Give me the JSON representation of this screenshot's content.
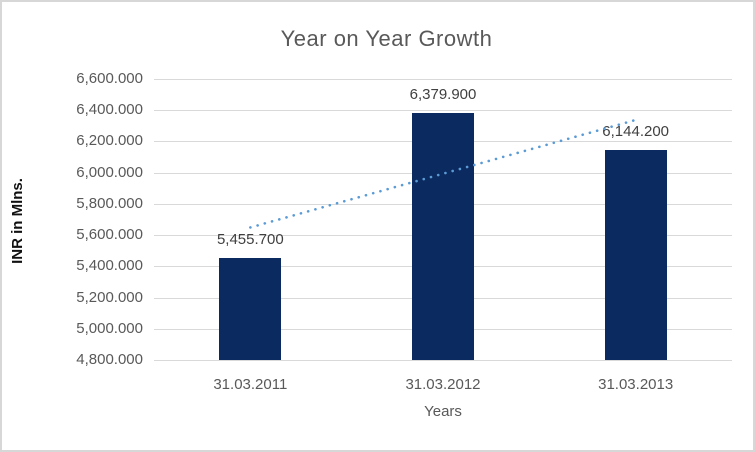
{
  "window": {
    "background": "#ffffff",
    "border_color": "#d7d7d7"
  },
  "chart_data": {
    "type": "bar",
    "title": "Year on Year Growth",
    "xlabel": "Years",
    "ylabel": "INR in Mlns.",
    "categories": [
      "31.03.2011",
      "31.03.2012",
      "31.03.2013"
    ],
    "values": [
      5455.7,
      6379.9,
      6144.2
    ],
    "value_labels": [
      "5,455.700",
      "6,379.900",
      "6,144.200"
    ],
    "ylim": [
      4800,
      6600
    ],
    "ytick_step": 200,
    "ytick_labels": [
      "6,600.000",
      "6,400.000",
      "6,200.000",
      "6,000.000",
      "5,800.000",
      "5,600.000",
      "5,400.000",
      "5,200.000",
      "5,000.000",
      "4,800.000"
    ],
    "grid": true,
    "legend_position": "none",
    "bar_color": "#0b2a60",
    "gridline_color": "#d9d9d9",
    "axis_text_color": "#595959",
    "title_color": "#595959",
    "data_label_color": "#404040",
    "trendline": {
      "type": "linear",
      "style": "dotted",
      "color": "#5b9bd5",
      "fit_y_start": 5649.0,
      "fit_y_end": 6337.5
    }
  }
}
